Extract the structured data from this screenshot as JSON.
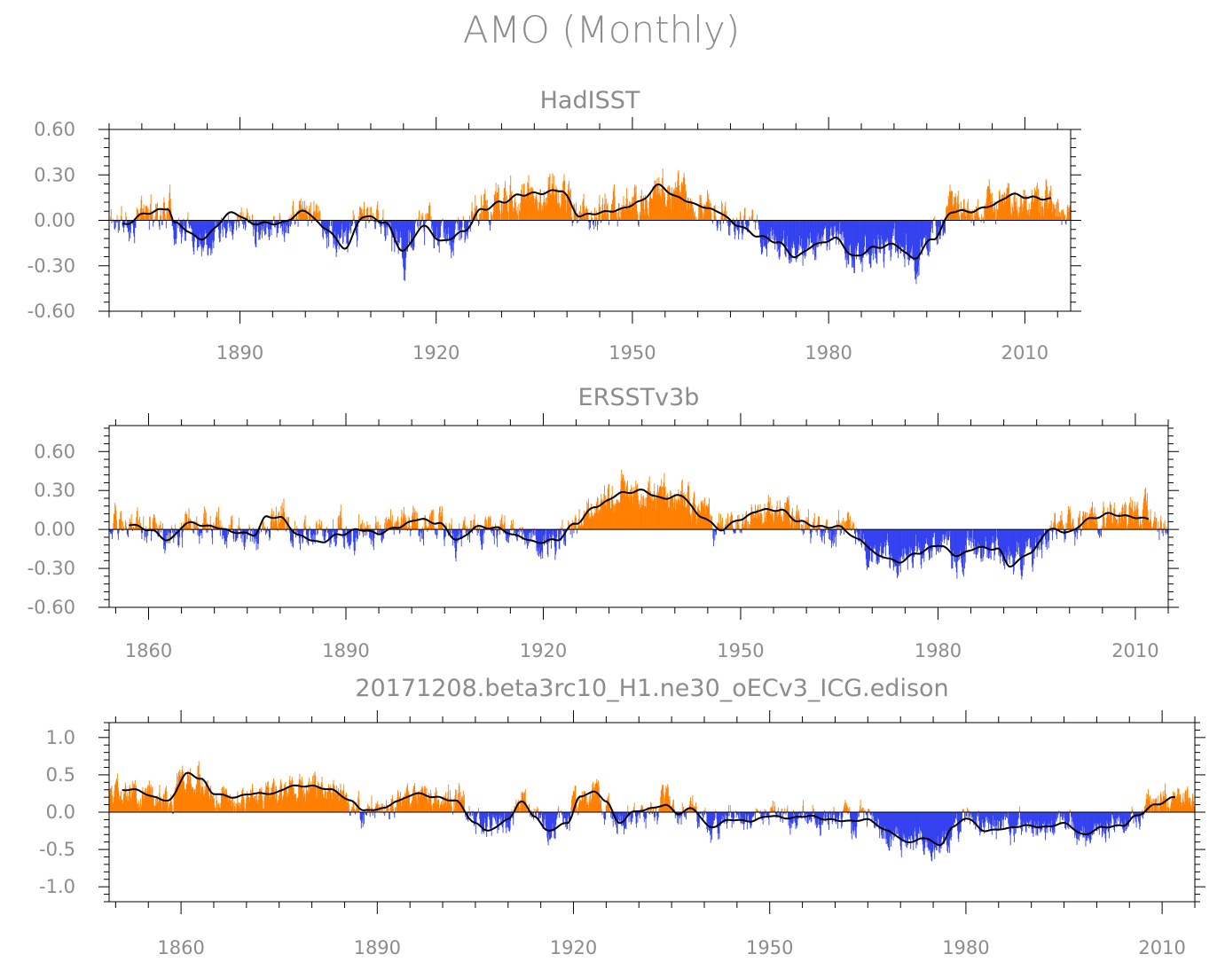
{
  "title": "AMO (Monthly)",
  "colors": {
    "positive": "#ff7f00",
    "negative": "#3341f0",
    "axis": "#000000",
    "text": "#8c8c8c"
  },
  "chart_data": [
    {
      "type": "bar",
      "title": "HadISST",
      "xlim": [
        1870,
        2017
      ],
      "ylim": [
        -0.6,
        0.6
      ],
      "xticks": [
        1890,
        1920,
        1950,
        1980,
        2010
      ],
      "xticklabels": [
        "1890",
        "1920",
        "1950",
        "1980",
        "2010"
      ],
      "yticks": [
        -0.6,
        -0.3,
        0.0,
        0.3,
        0.6
      ],
      "yticklabels": [
        "-0.60",
        "-0.30",
        "0.00",
        "0.30",
        "0.60"
      ],
      "anomaly_knots": [
        [
          1870,
          0.0
        ],
        [
          1872,
          -0.03
        ],
        [
          1876,
          0.05
        ],
        [
          1879,
          0.08
        ],
        [
          1880,
          -0.02
        ],
        [
          1884,
          -0.12
        ],
        [
          1889,
          0.05
        ],
        [
          1892,
          -0.02
        ],
        [
          1896,
          -0.02
        ],
        [
          1900,
          0.06
        ],
        [
          1903,
          -0.05
        ],
        [
          1906,
          -0.18
        ],
        [
          1909,
          0.03
        ],
        [
          1912,
          -0.01
        ],
        [
          1915,
          -0.2
        ],
        [
          1918,
          -0.04
        ],
        [
          1921,
          -0.14
        ],
        [
          1924,
          -0.08
        ],
        [
          1927,
          0.07
        ],
        [
          1930,
          0.12
        ],
        [
          1933,
          0.17
        ],
        [
          1936,
          0.18
        ],
        [
          1939,
          0.2
        ],
        [
          1942,
          0.03
        ],
        [
          1945,
          0.05
        ],
        [
          1948,
          0.07
        ],
        [
          1951,
          0.12
        ],
        [
          1954,
          0.23
        ],
        [
          1957,
          0.15
        ],
        [
          1960,
          0.1
        ],
        [
          1963,
          0.06
        ],
        [
          1966,
          -0.03
        ],
        [
          1969,
          -0.1
        ],
        [
          1972,
          -0.14
        ],
        [
          1975,
          -0.24
        ],
        [
          1978,
          -0.16
        ],
        [
          1981,
          -0.12
        ],
        [
          1984,
          -0.24
        ],
        [
          1987,
          -0.18
        ],
        [
          1990,
          -0.16
        ],
        [
          1993,
          -0.25
        ],
        [
          1996,
          -0.12
        ],
        [
          1999,
          0.06
        ],
        [
          2002,
          0.06
        ],
        [
          2005,
          0.1
        ],
        [
          2008,
          0.17
        ],
        [
          2011,
          0.15
        ],
        [
          2014,
          0.14
        ],
        [
          2016,
          0.05
        ]
      ],
      "smooth_range": [
        1872,
        2014
      ],
      "noise_amplitude": 0.09,
      "seed": 11
    },
    {
      "type": "bar",
      "title": "ERSSTv3b",
      "xlim": [
        1854,
        2015
      ],
      "ylim": [
        -0.6,
        0.8
      ],
      "xticks": [
        1860,
        1890,
        1920,
        1950,
        1980,
        2010
      ],
      "xticklabels": [
        "1860",
        "1890",
        "1920",
        "1950",
        "1980",
        "2010"
      ],
      "yticks": [
        -0.6,
        -0.3,
        0.0,
        0.3,
        0.6
      ],
      "yticklabels": [
        "-0.60",
        "-0.30",
        "0.00",
        "0.30",
        "0.60"
      ],
      "anomaly_knots": [
        [
          1854,
          0.05
        ],
        [
          1857,
          0.04
        ],
        [
          1860,
          0.0
        ],
        [
          1863,
          -0.08
        ],
        [
          1866,
          0.05
        ],
        [
          1870,
          0.02
        ],
        [
          1873,
          -0.02
        ],
        [
          1876,
          -0.04
        ],
        [
          1878,
          0.1
        ],
        [
          1880,
          0.09
        ],
        [
          1883,
          -0.05
        ],
        [
          1886,
          -0.1
        ],
        [
          1889,
          -0.04
        ],
        [
          1892,
          0.0
        ],
        [
          1895,
          -0.03
        ],
        [
          1898,
          0.02
        ],
        [
          1901,
          0.08
        ],
        [
          1904,
          0.05
        ],
        [
          1907,
          -0.08
        ],
        [
          1910,
          0.02
        ],
        [
          1913,
          0.01
        ],
        [
          1916,
          -0.05
        ],
        [
          1919,
          -0.1
        ],
        [
          1922,
          -0.08
        ],
        [
          1925,
          0.05
        ],
        [
          1928,
          0.18
        ],
        [
          1932,
          0.28
        ],
        [
          1935,
          0.3
        ],
        [
          1938,
          0.24
        ],
        [
          1941,
          0.26
        ],
        [
          1944,
          0.1
        ],
        [
          1947,
          0.0
        ],
        [
          1950,
          0.08
        ],
        [
          1953,
          0.15
        ],
        [
          1956,
          0.15
        ],
        [
          1959,
          0.06
        ],
        [
          1962,
          0.02
        ],
        [
          1965,
          0.02
        ],
        [
          1968,
          -0.08
        ],
        [
          1971,
          -0.2
        ],
        [
          1974,
          -0.25
        ],
        [
          1977,
          -0.18
        ],
        [
          1980,
          -0.12
        ],
        [
          1983,
          -0.2
        ],
        [
          1986,
          -0.14
        ],
        [
          1989,
          -0.15
        ],
        [
          1991,
          -0.28
        ],
        [
          1994,
          -0.18
        ],
        [
          1997,
          0.0
        ],
        [
          2000,
          -0.02
        ],
        [
          2003,
          0.08
        ],
        [
          2006,
          0.12
        ],
        [
          2009,
          0.1
        ],
        [
          2012,
          0.08
        ],
        [
          2014,
          0.0
        ]
      ],
      "smooth_range": [
        1857,
        2012
      ],
      "noise_amplitude": 0.1,
      "seed": 29
    },
    {
      "type": "bar",
      "title": "20171208.beta3rc10_H1.ne30_oECv3_ICG.edison",
      "xlim": [
        1849,
        2015
      ],
      "ylim": [
        -1.2,
        1.2
      ],
      "xticks": [
        1860,
        1890,
        1920,
        1950,
        1980,
        2010
      ],
      "xticklabels": [
        "1860",
        "1890",
        "1920",
        "1950",
        "1980",
        "2010"
      ],
      "yticks": [
        -1.0,
        -0.5,
        0.0,
        0.5,
        1.0
      ],
      "yticklabels": [
        "-1.0",
        "-0.5",
        "0.0",
        "0.5",
        "1.0"
      ],
      "anomaly_knots": [
        [
          1850,
          0.3
        ],
        [
          1853,
          0.3
        ],
        [
          1856,
          0.2
        ],
        [
          1858,
          0.15
        ],
        [
          1861,
          0.52
        ],
        [
          1863,
          0.45
        ],
        [
          1865,
          0.25
        ],
        [
          1868,
          0.2
        ],
        [
          1871,
          0.25
        ],
        [
          1874,
          0.25
        ],
        [
          1877,
          0.35
        ],
        [
          1880,
          0.35
        ],
        [
          1883,
          0.3
        ],
        [
          1886,
          0.15
        ],
        [
          1888,
          0.02
        ],
        [
          1891,
          0.05
        ],
        [
          1893,
          0.15
        ],
        [
          1896,
          0.25
        ],
        [
          1899,
          0.2
        ],
        [
          1902,
          0.15
        ],
        [
          1905,
          -0.15
        ],
        [
          1907,
          -0.25
        ],
        [
          1910,
          -0.1
        ],
        [
          1912,
          0.15
        ],
        [
          1914,
          -0.05
        ],
        [
          1916,
          -0.25
        ],
        [
          1919,
          -0.15
        ],
        [
          1921,
          0.2
        ],
        [
          1923,
          0.28
        ],
        [
          1925,
          0.15
        ],
        [
          1927,
          -0.15
        ],
        [
          1929,
          0.0
        ],
        [
          1932,
          0.05
        ],
        [
          1934,
          0.1
        ],
        [
          1936,
          -0.02
        ],
        [
          1938,
          0.05
        ],
        [
          1941,
          -0.2
        ],
        [
          1944,
          -0.1
        ],
        [
          1947,
          -0.12
        ],
        [
          1950,
          -0.05
        ],
        [
          1953,
          -0.08
        ],
        [
          1956,
          -0.05
        ],
        [
          1959,
          -0.1
        ],
        [
          1962,
          -0.12
        ],
        [
          1965,
          -0.1
        ],
        [
          1968,
          -0.25
        ],
        [
          1971,
          -0.4
        ],
        [
          1974,
          -0.35
        ],
        [
          1976,
          -0.45
        ],
        [
          1978,
          -0.2
        ],
        [
          1980,
          -0.08
        ],
        [
          1983,
          -0.25
        ],
        [
          1986,
          -0.22
        ],
        [
          1989,
          -0.18
        ],
        [
          1992,
          -0.2
        ],
        [
          1995,
          -0.15
        ],
        [
          1998,
          -0.3
        ],
        [
          2001,
          -0.2
        ],
        [
          2004,
          -0.18
        ],
        [
          2006,
          -0.05
        ],
        [
          2009,
          0.1
        ],
        [
          2012,
          0.2
        ],
        [
          2015,
          0.25
        ]
      ],
      "smooth_range": [
        1851,
        2012
      ],
      "noise_amplitude": 0.14,
      "seed": 47
    }
  ]
}
